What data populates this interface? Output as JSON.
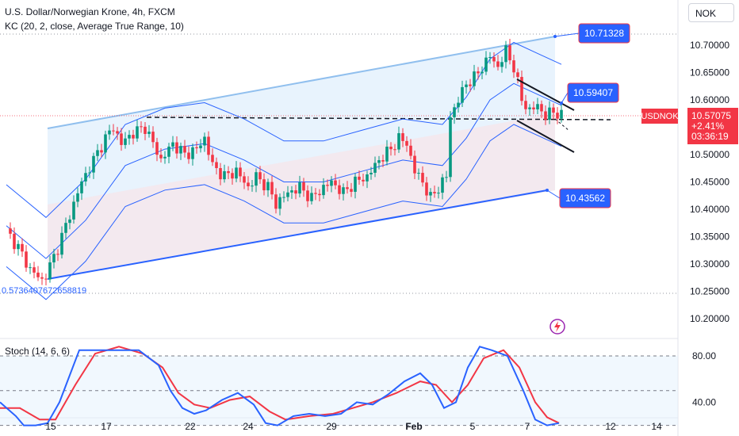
{
  "header": {
    "title": "U.S. Dollar/Norwegian Krone, 4h, FXCM",
    "indicator": "KC (20, 2, close, Average True Range, 10)",
    "currency": "NOK"
  },
  "price_badge": {
    "symbol": "USDNOK",
    "price": "10.57075",
    "change": "+2.41%",
    "countdown": "03:36:19"
  },
  "annotations": {
    "upper_channel": "10.71328",
    "flag_top": "10.59407",
    "lower_channel": "10.43562",
    "origin": "0.5736407672658819"
  },
  "stoch": {
    "label": "Stoch (14, 6, 6)",
    "ticks": [
      "80.00",
      "40.00"
    ]
  },
  "colors": {
    "up": "#089981",
    "down": "#f23645",
    "keltner": "#2962ff",
    "stoch_k": "#2962ff",
    "stoch_d": "#f23645",
    "badge_blue": "#2962ff",
    "badge_red": "#f23645"
  },
  "chart_data": {
    "type": "candlestick",
    "title": "U.S. Dollar/Norwegian Krone, 4h, FXCM",
    "y_ticks": [
      "10.70000",
      "10.65000",
      "10.60000",
      "10.55000",
      "10.50000",
      "10.45000",
      "10.40000",
      "10.35000",
      "10.30000",
      "10.25000",
      "10.20000"
    ],
    "x_ticks": [
      "15",
      "17",
      "22",
      "24",
      "29",
      "Feb",
      "5",
      "7",
      "12",
      "14"
    ],
    "close_path": [
      [
        0,
        10.36
      ],
      [
        3,
        10.33
      ],
      [
        6,
        10.29
      ],
      [
        9,
        10.27
      ],
      [
        10,
        10.28
      ],
      [
        13,
        10.33
      ],
      [
        16,
        10.39
      ],
      [
        19,
        10.45
      ],
      [
        22,
        10.49
      ],
      [
        25,
        10.53
      ],
      [
        27,
        10.55
      ],
      [
        29,
        10.52
      ],
      [
        32,
        10.54
      ],
      [
        35,
        10.55
      ],
      [
        37,
        10.52
      ],
      [
        39,
        10.49
      ],
      [
        42,
        10.52
      ],
      [
        45,
        10.5
      ],
      [
        48,
        10.51
      ],
      [
        50,
        10.53
      ],
      [
        52,
        10.48
      ],
      [
        55,
        10.46
      ],
      [
        58,
        10.47
      ],
      [
        61,
        10.44
      ],
      [
        63,
        10.46
      ],
      [
        66,
        10.44
      ],
      [
        68,
        10.41
      ],
      [
        71,
        10.43
      ],
      [
        74,
        10.44
      ],
      [
        77,
        10.42
      ],
      [
        80,
        10.44
      ],
      [
        82,
        10.45
      ],
      [
        85,
        10.43
      ],
      [
        88,
        10.45
      ],
      [
        91,
        10.46
      ],
      [
        94,
        10.49
      ],
      [
        97,
        10.51
      ],
      [
        99,
        10.53
      ],
      [
        101,
        10.52
      ],
      [
        103,
        10.47
      ],
      [
        105,
        10.45
      ],
      [
        107,
        10.42
      ],
      [
        109,
        10.44
      ],
      [
        111,
        10.46
      ],
      [
        112,
        10.57
      ],
      [
        114,
        10.6
      ],
      [
        116,
        10.63
      ],
      [
        118,
        10.64
      ],
      [
        120,
        10.66
      ],
      [
        122,
        10.68
      ],
      [
        124,
        10.66
      ],
      [
        126,
        10.69
      ],
      [
        128,
        10.66
      ],
      [
        130,
        10.6
      ],
      [
        132,
        10.58
      ],
      [
        134,
        10.59
      ],
      [
        136,
        10.57
      ],
      [
        138,
        10.58
      ],
      [
        140,
        10.57
      ]
    ],
    "keltner_mid": [
      [
        0,
        10.37
      ],
      [
        10,
        10.31
      ],
      [
        20,
        10.38
      ],
      [
        30,
        10.48
      ],
      [
        40,
        10.51
      ],
      [
        50,
        10.52
      ],
      [
        60,
        10.49
      ],
      [
        70,
        10.45
      ],
      [
        80,
        10.45
      ],
      [
        90,
        10.47
      ],
      [
        100,
        10.49
      ],
      [
        110,
        10.48
      ],
      [
        116,
        10.53
      ],
      [
        122,
        10.6
      ],
      [
        128,
        10.63
      ],
      [
        134,
        10.61
      ],
      [
        140,
        10.59
      ]
    ]
  }
}
